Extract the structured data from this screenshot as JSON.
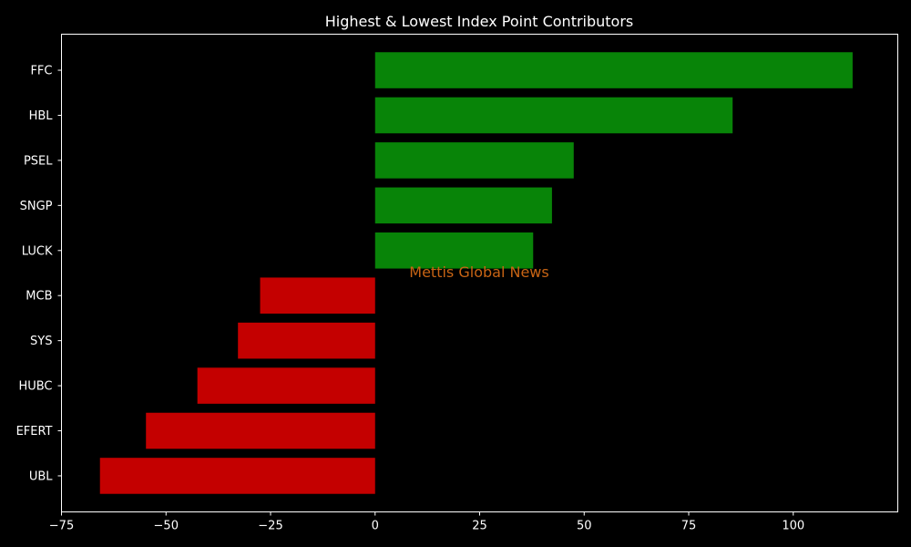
{
  "chart_data": {
    "type": "bar",
    "orientation": "horizontal",
    "title": "Highest & Lowest Index Point Contributors",
    "xlabel": "",
    "ylabel": "",
    "categories": [
      "FFC",
      "HBL",
      "PSEL",
      "SNGP",
      "LUCK",
      "MCB",
      "SYS",
      "HUBC",
      "EFERT",
      "UBL"
    ],
    "values": [
      114.2,
      85.5,
      47.5,
      42.3,
      37.8,
      -27.5,
      -32.8,
      -42.5,
      -54.8,
      -65.8
    ],
    "xlim": [
      -75,
      125
    ],
    "xticks": [
      -75,
      -50,
      -25,
      0,
      25,
      50,
      75,
      100
    ],
    "xtick_labels": [
      "−75",
      "−50",
      "−25",
      "0",
      "25",
      "50",
      "75",
      "100"
    ],
    "grid": false,
    "colors": {
      "positive": "#088408",
      "negative": "#c40000",
      "background": "#000000",
      "axes": "#ffffff",
      "text": "#ffffff",
      "watermark": "#c86414"
    },
    "watermark": "Mettis Global News"
  }
}
